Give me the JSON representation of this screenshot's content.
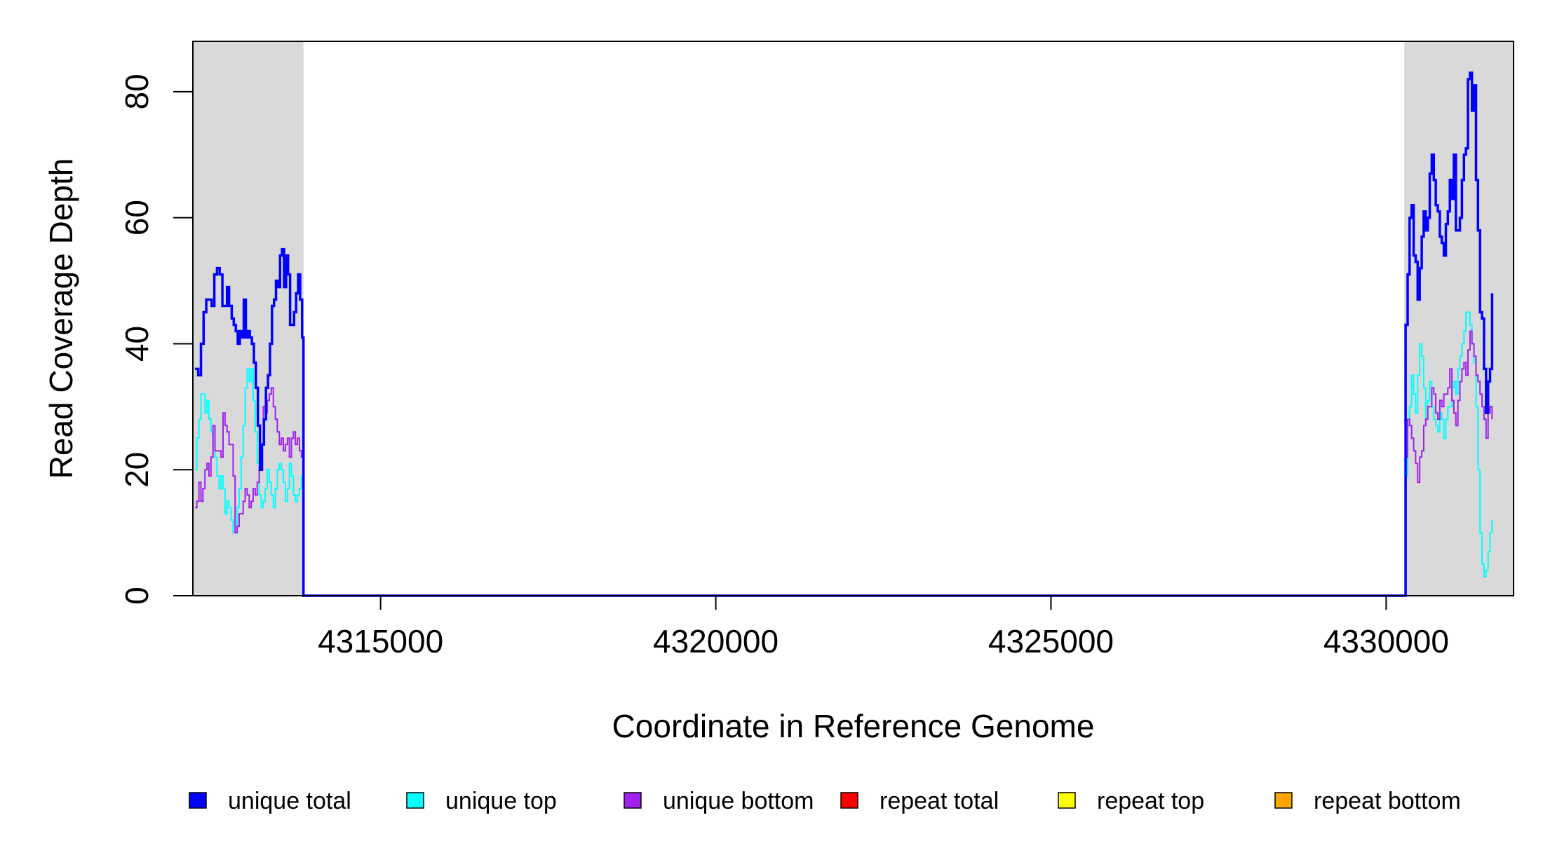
{
  "chart_data": {
    "type": "line",
    "title": "",
    "xlabel": "Coordinate in Reference Genome",
    "ylabel": "Read Coverage Depth",
    "xlim": [
      4312200,
      4331900
    ],
    "ylim": [
      0,
      88
    ],
    "x_ticks": [
      4315000,
      4320000,
      4325000,
      4330000
    ],
    "x_tick_labels": [
      "4315000",
      "4320000",
      "4325000",
      "4330000"
    ],
    "y_ticks": [
      0,
      20,
      40,
      60,
      80
    ],
    "y_tick_labels": [
      "0",
      "20",
      "40",
      "60",
      "80"
    ],
    "grid": false,
    "legend_position": "bottom",
    "shaded_regions": [
      {
        "x_start": 4312200,
        "x_end": 4313850,
        "color": "#d9d9d9"
      },
      {
        "x_start": 4330270,
        "x_end": 4331900,
        "color": "#d9d9d9"
      }
    ],
    "series": [
      {
        "name": "unique total",
        "color": "#0000ff",
        "points": [
          [
            4312230,
            36
          ],
          [
            4312280,
            35
          ],
          [
            4312320,
            40
          ],
          [
            4312360,
            45
          ],
          [
            4312400,
            47
          ],
          [
            4312440,
            47
          ],
          [
            4312480,
            46
          ],
          [
            4312520,
            51
          ],
          [
            4312560,
            52
          ],
          [
            4312600,
            51
          ],
          [
            4312640,
            46
          ],
          [
            4312680,
            46
          ],
          [
            4312710,
            49
          ],
          [
            4312740,
            46
          ],
          [
            4312780,
            44
          ],
          [
            4312810,
            43
          ],
          [
            4312840,
            42
          ],
          [
            4312870,
            40
          ],
          [
            4312900,
            42
          ],
          [
            4312930,
            41
          ],
          [
            4312960,
            47
          ],
          [
            4312990,
            41
          ],
          [
            4313020,
            42
          ],
          [
            4313050,
            41
          ],
          [
            4313080,
            40
          ],
          [
            4313110,
            37
          ],
          [
            4313140,
            33
          ],
          [
            4313170,
            27
          ],
          [
            4313200,
            20
          ],
          [
            4313230,
            24
          ],
          [
            4313260,
            28
          ],
          [
            4313290,
            33
          ],
          [
            4313320,
            35
          ],
          [
            4313350,
            40
          ],
          [
            4313380,
            46
          ],
          [
            4313410,
            47
          ],
          [
            4313440,
            50
          ],
          [
            4313470,
            49
          ],
          [
            4313500,
            54
          ],
          [
            4313530,
            55
          ],
          [
            4313560,
            49
          ],
          [
            4313590,
            54
          ],
          [
            4313620,
            51
          ],
          [
            4313650,
            43
          ],
          [
            4313680,
            43
          ],
          [
            4313710,
            45
          ],
          [
            4313740,
            48
          ],
          [
            4313770,
            51
          ],
          [
            4313800,
            47
          ],
          [
            4313830,
            41
          ],
          [
            4313850,
            0
          ],
          [
            4330270,
            0
          ],
          [
            4330290,
            43
          ],
          [
            4330320,
            51
          ],
          [
            4330350,
            60
          ],
          [
            4330380,
            62
          ],
          [
            4330410,
            54
          ],
          [
            4330440,
            53
          ],
          [
            4330470,
            47
          ],
          [
            4330500,
            52
          ],
          [
            4330530,
            57
          ],
          [
            4330560,
            61
          ],
          [
            4330590,
            58
          ],
          [
            4330620,
            60
          ],
          [
            4330650,
            67
          ],
          [
            4330680,
            70
          ],
          [
            4330710,
            66
          ],
          [
            4330740,
            62
          ],
          [
            4330770,
            61
          ],
          [
            4330800,
            57
          ],
          [
            4330830,
            56
          ],
          [
            4330860,
            54
          ],
          [
            4330890,
            59
          ],
          [
            4330920,
            61
          ],
          [
            4330950,
            66
          ],
          [
            4330980,
            63
          ],
          [
            4331010,
            70
          ],
          [
            4331040,
            58
          ],
          [
            4331070,
            58
          ],
          [
            4331100,
            60
          ],
          [
            4331130,
            66
          ],
          [
            4331160,
            70
          ],
          [
            4331190,
            71
          ],
          [
            4331220,
            82
          ],
          [
            4331250,
            83
          ],
          [
            4331280,
            77
          ],
          [
            4331310,
            81
          ],
          [
            4331340,
            66
          ],
          [
            4331370,
            58
          ],
          [
            4331400,
            45
          ],
          [
            4331430,
            44
          ],
          [
            4331460,
            36
          ],
          [
            4331490,
            29
          ],
          [
            4331520,
            34
          ],
          [
            4331550,
            36
          ],
          [
            4331580,
            48
          ]
        ]
      },
      {
        "name": "unique top",
        "color": "#00ffff",
        "points": [
          [
            4312230,
            20
          ],
          [
            4312260,
            25
          ],
          [
            4312290,
            28
          ],
          [
            4312320,
            32
          ],
          [
            4312350,
            32
          ],
          [
            4312380,
            29
          ],
          [
            4312410,
            31
          ],
          [
            4312440,
            28
          ],
          [
            4312470,
            26
          ],
          [
            4312500,
            24
          ],
          [
            4312530,
            22
          ],
          [
            4312560,
            19
          ],
          [
            4312590,
            17
          ],
          [
            4312620,
            19
          ],
          [
            4312650,
            17
          ],
          [
            4312680,
            13
          ],
          [
            4312710,
            15
          ],
          [
            4312740,
            14
          ],
          [
            4312770,
            12
          ],
          [
            4312800,
            10
          ],
          [
            4312830,
            10
          ],
          [
            4312860,
            14
          ],
          [
            4312890,
            17
          ],
          [
            4312920,
            22
          ],
          [
            4312950,
            27
          ],
          [
            4312980,
            33
          ],
          [
            4313010,
            36
          ],
          [
            4313040,
            34
          ],
          [
            4313070,
            36
          ],
          [
            4313100,
            31
          ],
          [
            4313130,
            26
          ],
          [
            4313160,
            21
          ],
          [
            4313190,
            16
          ],
          [
            4313220,
            14
          ],
          [
            4313250,
            15
          ],
          [
            4313280,
            17
          ],
          [
            4313310,
            20
          ],
          [
            4313340,
            18
          ],
          [
            4313370,
            16
          ],
          [
            4313400,
            14
          ],
          [
            4313430,
            17
          ],
          [
            4313460,
            20
          ],
          [
            4313490,
            21
          ],
          [
            4313520,
            20
          ],
          [
            4313550,
            18
          ],
          [
            4313580,
            15
          ],
          [
            4313610,
            17
          ],
          [
            4313640,
            21
          ],
          [
            4313670,
            19
          ],
          [
            4313700,
            16
          ],
          [
            4313730,
            15
          ],
          [
            4313760,
            16
          ],
          [
            4313790,
            17
          ],
          [
            4313820,
            19
          ],
          [
            4313850,
            0
          ],
          [
            4330270,
            0
          ],
          [
            4330290,
            19
          ],
          [
            4330320,
            27
          ],
          [
            4330350,
            30
          ],
          [
            4330380,
            35
          ],
          [
            4330410,
            32
          ],
          [
            4330440,
            29
          ],
          [
            4330470,
            35
          ],
          [
            4330500,
            40
          ],
          [
            4330530,
            38
          ],
          [
            4330560,
            33
          ],
          [
            4330590,
            28
          ],
          [
            4330620,
            31
          ],
          [
            4330650,
            34
          ],
          [
            4330680,
            30
          ],
          [
            4330710,
            28
          ],
          [
            4330740,
            27
          ],
          [
            4330770,
            26
          ],
          [
            4330800,
            29
          ],
          [
            4330830,
            28
          ],
          [
            4330860,
            25
          ],
          [
            4330890,
            28
          ],
          [
            4330920,
            30
          ],
          [
            4330950,
            30
          ],
          [
            4330980,
            33
          ],
          [
            4331010,
            34
          ],
          [
            4331040,
            32
          ],
          [
            4331070,
            36
          ],
          [
            4331100,
            38
          ],
          [
            4331130,
            40
          ],
          [
            4331160,
            42
          ],
          [
            4331190,
            45
          ],
          [
            4331220,
            45
          ],
          [
            4331250,
            43
          ],
          [
            4331280,
            40
          ],
          [
            4331310,
            37
          ],
          [
            4331340,
            30
          ],
          [
            4331370,
            20
          ],
          [
            4331400,
            10
          ],
          [
            4331430,
            5
          ],
          [
            4331460,
            3
          ],
          [
            4331490,
            4
          ],
          [
            4331520,
            7
          ],
          [
            4331550,
            10
          ],
          [
            4331580,
            12
          ]
        ]
      },
      {
        "name": "unique bottom",
        "color": "#a020f0",
        "points": [
          [
            4312230,
            14
          ],
          [
            4312260,
            15
          ],
          [
            4312290,
            18
          ],
          [
            4312320,
            15
          ],
          [
            4312350,
            17
          ],
          [
            4312380,
            20
          ],
          [
            4312410,
            21
          ],
          [
            4312440,
            19
          ],
          [
            4312470,
            22
          ],
          [
            4312500,
            27
          ],
          [
            4312530,
            23
          ],
          [
            4312560,
            23
          ],
          [
            4312590,
            23
          ],
          [
            4312620,
            22
          ],
          [
            4312650,
            29
          ],
          [
            4312680,
            27
          ],
          [
            4312710,
            26
          ],
          [
            4312740,
            24
          ],
          [
            4312770,
            24
          ],
          [
            4312800,
            19
          ],
          [
            4312830,
            10
          ],
          [
            4312860,
            11
          ],
          [
            4312890,
            13
          ],
          [
            4312920,
            13
          ],
          [
            4312950,
            15
          ],
          [
            4312980,
            17
          ],
          [
            4313010,
            16
          ],
          [
            4313040,
            14
          ],
          [
            4313070,
            15
          ],
          [
            4313100,
            17
          ],
          [
            4313130,
            16
          ],
          [
            4313160,
            18
          ],
          [
            4313190,
            20
          ],
          [
            4313220,
            24
          ],
          [
            4313250,
            30
          ],
          [
            4313280,
            29
          ],
          [
            4313310,
            31
          ],
          [
            4313340,
            32
          ],
          [
            4313370,
            33
          ],
          [
            4313400,
            30
          ],
          [
            4313430,
            28
          ],
          [
            4313460,
            26
          ],
          [
            4313490,
            24
          ],
          [
            4313520,
            25
          ],
          [
            4313550,
            23
          ],
          [
            4313580,
            24
          ],
          [
            4313610,
            25
          ],
          [
            4313640,
            22
          ],
          [
            4313670,
            25
          ],
          [
            4313700,
            26
          ],
          [
            4313730,
            24
          ],
          [
            4313760,
            25
          ],
          [
            4313790,
            23
          ],
          [
            4313820,
            22
          ],
          [
            4313850,
            0
          ],
          [
            4330270,
            0
          ],
          [
            4330290,
            22
          ],
          [
            4330320,
            28
          ],
          [
            4330350,
            27
          ],
          [
            4330380,
            25
          ],
          [
            4330410,
            23
          ],
          [
            4330440,
            21
          ],
          [
            4330470,
            18
          ],
          [
            4330500,
            22
          ],
          [
            4330530,
            23
          ],
          [
            4330560,
            27
          ],
          [
            4330590,
            28
          ],
          [
            4330620,
            30
          ],
          [
            4330650,
            30
          ],
          [
            4330680,
            33
          ],
          [
            4330710,
            32
          ],
          [
            4330740,
            29
          ],
          [
            4330770,
            28
          ],
          [
            4330800,
            31
          ],
          [
            4330830,
            30
          ],
          [
            4330860,
            32
          ],
          [
            4330890,
            32
          ],
          [
            4330920,
            33
          ],
          [
            4330950,
            36
          ],
          [
            4330980,
            31
          ],
          [
            4331010,
            29
          ],
          [
            4331040,
            27
          ],
          [
            4331070,
            31
          ],
          [
            4331100,
            34
          ],
          [
            4331130,
            36
          ],
          [
            4331160,
            37
          ],
          [
            4331190,
            35
          ],
          [
            4331220,
            39
          ],
          [
            4331250,
            42
          ],
          [
            4331280,
            40
          ],
          [
            4331310,
            38
          ],
          [
            4331340,
            35
          ],
          [
            4331370,
            34
          ],
          [
            4331400,
            32
          ],
          [
            4331430,
            30
          ],
          [
            4331460,
            28
          ],
          [
            4331490,
            25
          ],
          [
            4331520,
            29
          ],
          [
            4331550,
            30
          ],
          [
            4331580,
            28
          ]
        ]
      },
      {
        "name": "repeat total",
        "color": "#ff0000",
        "points": [
          [
            4312200,
            0
          ],
          [
            4331900,
            0
          ]
        ]
      },
      {
        "name": "repeat top",
        "color": "#ffff00",
        "points": [
          [
            4312200,
            0
          ],
          [
            4331900,
            0
          ]
        ]
      },
      {
        "name": "repeat bottom",
        "color": "#ffa500",
        "points": [
          [
            4312200,
            0
          ],
          [
            4331900,
            0
          ]
        ]
      }
    ]
  }
}
